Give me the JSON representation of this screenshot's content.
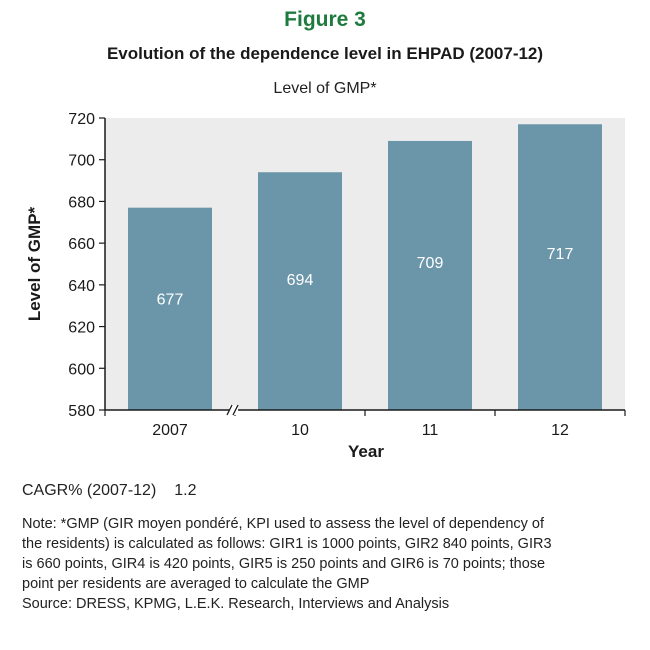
{
  "header": {
    "figure_label": "Figure 3",
    "title": "Evolution of the dependence level in EHPAD (2007-12)",
    "subtitle": "Level of GMP*"
  },
  "chart_data": {
    "type": "bar",
    "categories": [
      "2007",
      "10",
      "11",
      "12"
    ],
    "values": [
      677,
      694,
      709,
      717
    ],
    "data_labels": [
      "677",
      "694",
      "709",
      "717"
    ],
    "xlabel": "Year",
    "ylabel": "Level of GMP*",
    "ylim": [
      580,
      720
    ],
    "yticks": [
      580,
      600,
      620,
      640,
      660,
      680,
      700,
      720
    ],
    "grid": false,
    "axis_break_between": [
      "2007",
      "10"
    ],
    "colors": {
      "bar": "#6b96aa",
      "plot_background": "#ececec"
    }
  },
  "footer": {
    "cagr_label": "CAGR% (2007-12)",
    "cagr_value": "1.2",
    "note_lines": [
      "Note: *GMP (GIR moyen pondéré, KPI used to assess the level of dependency of",
      "the residents) is calculated as follows: GIR1 is 1000 points, GIR2 840 points, GIR3",
      "is 660 points, GIR4 is 420 points, GIR5 is 250 points and GIR6 is 70 points; those",
      "point per residents are averaged to calculate the GMP"
    ],
    "source": "Source: DRESS, KPMG, L.E.K. Research, Interviews and Analysis"
  }
}
